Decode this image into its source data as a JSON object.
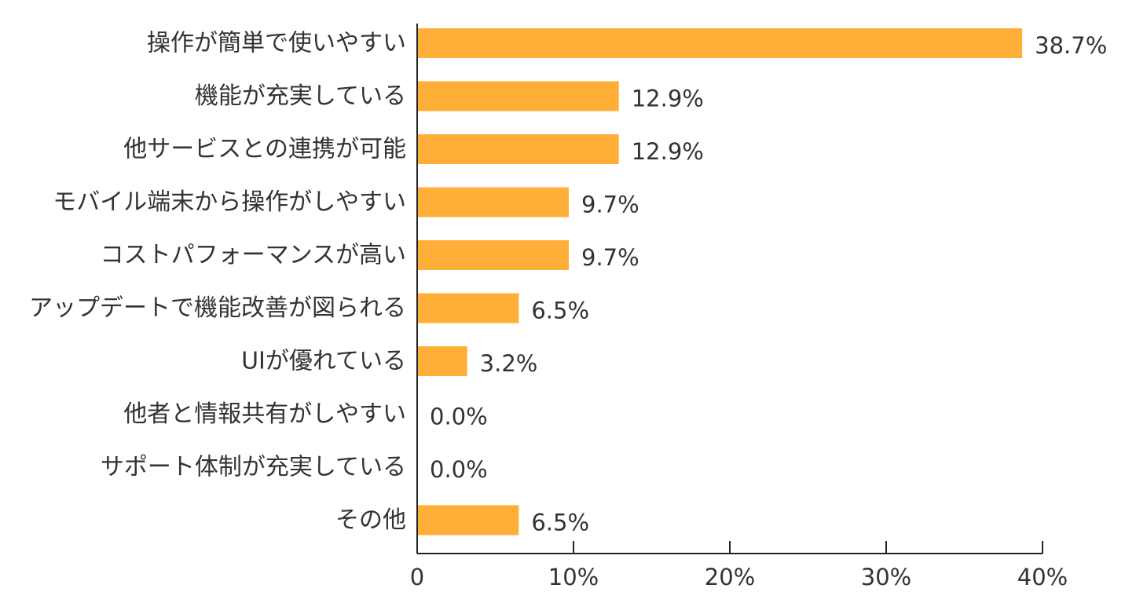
{
  "chart_data": {
    "type": "bar",
    "orientation": "horizontal",
    "categories": [
      "操作が簡単で使いやすい",
      "機能が充実している",
      "他サービスとの連携が可能",
      "モバイル端末から操作がしやすい",
      "コストパフォーマンスが高い",
      "アップデートで機能改善が図られる",
      "UIが優れている",
      "他者と情報共有がしやすい",
      "サポート体制が充実している",
      "その他"
    ],
    "values": [
      38.7,
      12.9,
      12.9,
      9.7,
      9.7,
      6.5,
      3.2,
      0.0,
      0.0,
      6.5
    ],
    "value_labels": [
      "38.7%",
      "12.9%",
      "12.9%",
      "9.7%",
      "9.7%",
      "6.5%",
      "3.2%",
      "0.0%",
      "0.0%",
      "6.5%"
    ],
    "xlim": [
      0,
      40
    ],
    "x_ticks": [
      0,
      10,
      20,
      30,
      40
    ],
    "x_tick_labels": [
      "0",
      "10%",
      "20%",
      "30%",
      "40%"
    ],
    "bar_color": "#FFAE38",
    "axis_color": "#222222",
    "text_color": "#333333",
    "grid": false,
    "legend": "none"
  }
}
